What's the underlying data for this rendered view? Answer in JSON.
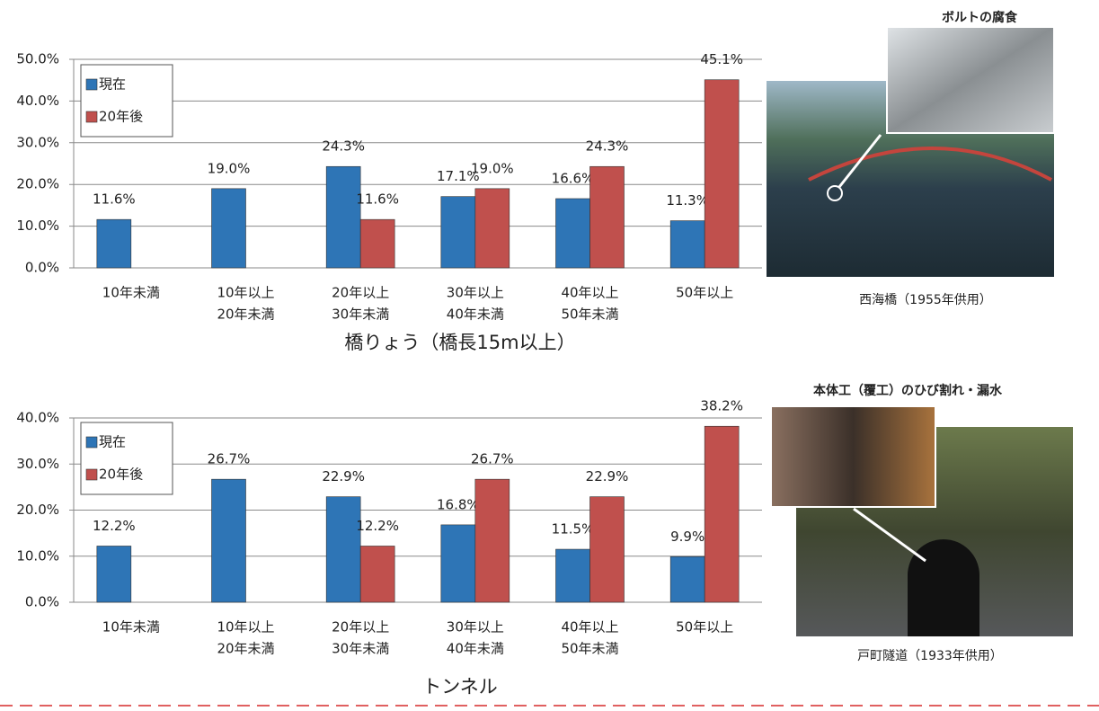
{
  "chart_data": [
    {
      "type": "bar",
      "title": "橋りょう（橋長15m以上）",
      "categories": [
        [
          "10年未満"
        ],
        [
          "10年以上",
          "20年未満"
        ],
        [
          "20年以上",
          "30年未満"
        ],
        [
          "30年以上",
          "40年未満"
        ],
        [
          "40年以上",
          "50年未満"
        ],
        [
          "50年以上"
        ]
      ],
      "series": [
        {
          "name": "現在",
          "color": "#2e75b6",
          "values": [
            11.6,
            19.0,
            24.3,
            17.1,
            16.6,
            11.3
          ],
          "value_labels": [
            "11.6%",
            "19.0%",
            "24.3%",
            "17.1%",
            "16.6%",
            "11.3%"
          ]
        },
        {
          "name": "20年後",
          "color": "#c0504d",
          "values": [
            null,
            null,
            11.6,
            19.0,
            24.3,
            45.1
          ],
          "value_labels": [
            null,
            null,
            "11.6%",
            "19.0%",
            "24.3%",
            "45.1%"
          ]
        }
      ],
      "ylim": [
        0,
        50
      ],
      "yticks": [
        {
          "value": 0,
          "label": "0.0%"
        },
        {
          "value": 10,
          "label": "10.0%"
        },
        {
          "value": 20,
          "label": "20.0%"
        },
        {
          "value": 30,
          "label": "30.0%"
        },
        {
          "value": 40,
          "label": "40.0%"
        },
        {
          "value": 50,
          "label": "50.0%"
        }
      ],
      "grid": true,
      "legend": "upper left"
    },
    {
      "type": "bar",
      "title": "トンネル",
      "categories": [
        [
          "10年未満"
        ],
        [
          "10年以上",
          "20年未満"
        ],
        [
          "20年以上",
          "30年未満"
        ],
        [
          "30年以上",
          "40年未満"
        ],
        [
          "40年以上",
          "50年未満"
        ],
        [
          "50年以上"
        ]
      ],
      "series": [
        {
          "name": "現在",
          "color": "#2e75b6",
          "values": [
            12.2,
            26.7,
            22.9,
            16.8,
            11.5,
            9.9
          ],
          "value_labels": [
            "12.2%",
            "26.7%",
            "22.9%",
            "16.8%",
            "11.5%",
            "9.9%"
          ]
        },
        {
          "name": "20年後",
          "color": "#c0504d",
          "values": [
            null,
            null,
            12.2,
            26.7,
            22.9,
            38.2
          ],
          "value_labels": [
            null,
            null,
            "12.2%",
            "26.7%",
            "22.9%",
            "38.2%"
          ]
        }
      ],
      "ylim": [
        0,
        40
      ],
      "yticks": [
        {
          "value": 0,
          "label": "0.0%"
        },
        {
          "value": 10,
          "label": "10.0%"
        },
        {
          "value": 20,
          "label": "20.0%"
        },
        {
          "value": 30,
          "label": "30.0%"
        },
        {
          "value": 40,
          "label": "40.0%"
        }
      ],
      "grid": true,
      "legend": "upper left"
    }
  ],
  "photos": [
    {
      "title": "ボルトの腐食",
      "caption": "西海橋（1955年供用）"
    },
    {
      "title": "本体工（覆工）のひび割れ・漏水",
      "caption": "戸町隧道（1933年供用）"
    }
  ]
}
